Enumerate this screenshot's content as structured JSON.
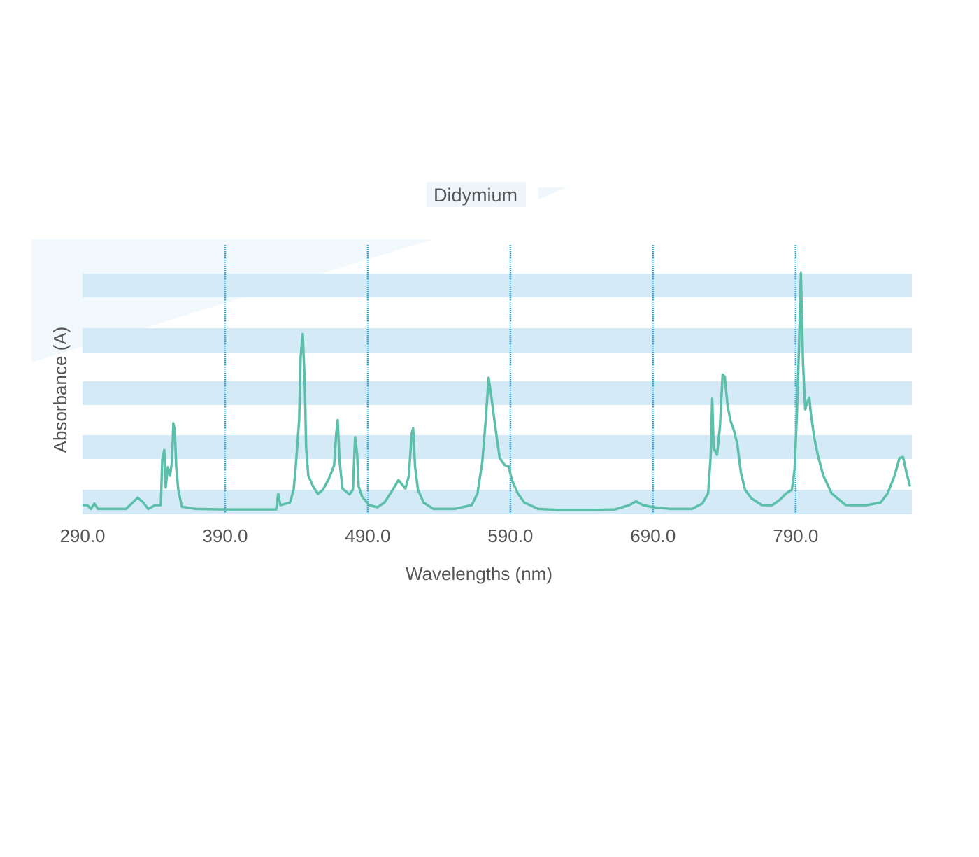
{
  "chart_data": {
    "type": "line",
    "title": "Didymium",
    "x_label": "Wavelengths (nm)",
    "y_label": "Absorbance (A)",
    "xlim": [
      290,
      871
    ],
    "ylim": [
      0,
      4.5
    ],
    "xticks": [
      {
        "value": 290,
        "label": "290.0"
      },
      {
        "value": 390,
        "label": "390.0"
      },
      {
        "value": 490,
        "label": "490.0"
      },
      {
        "value": 590,
        "label": "590.0"
      },
      {
        "value": 690,
        "label": "690.0"
      },
      {
        "value": 790,
        "label": "790.0"
      }
    ],
    "grid": true,
    "series": [
      {
        "color": "#5bbfaa",
        "x": [
          290.0,
          293.4,
          295.9,
          298.3,
          300.8,
          320.4,
          325.3,
          328.7,
          332.6,
          336.1,
          341.0,
          344.9,
          345.9,
          347.3,
          348.3,
          349.8,
          351.3,
          352.7,
          353.7,
          354.7,
          355.7,
          357.1,
          359.6,
          369.4,
          389.0,
          425.7,
          427.2,
          428.7,
          435.5,
          438.0,
          439.4,
          441.9,
          442.9,
          444.4,
          445.8,
          446.8,
          448.3,
          451.7,
          455.1,
          458.6,
          462.5,
          466.4,
          467.9,
          468.9,
          470.3,
          472.3,
          477.2,
          479.6,
          481.1,
          482.6,
          483.6,
          486.0,
          490.9,
          496.8,
          501.7,
          507.6,
          511.5,
          513.9,
          516.4,
          518.8,
          520.8,
          521.8,
          523.2,
          525.2,
          529.1,
          536.0,
          550.7,
          562.9,
          566.9,
          570.3,
          572.7,
          574.7,
          576.2,
          578.1,
          580.1,
          582.5,
          586.0,
          588.9,
          590.9,
          594.8,
          599.7,
          609.5,
          624.2,
          648.7,
          663.4,
          673.2,
          678.1,
          683.0,
          690.3,
          702.6,
          717.3,
          724.6,
          728.6,
          730.5,
          731.5,
          732.5,
          734.9,
          736.9,
          738.8,
          740.3,
          742.3,
          744.2,
          746.7,
          749.1,
          751.6,
          754.5,
          758.9,
          766.3,
          773.6,
          778.5,
          783.4,
          787.4,
          789.3,
          790.8,
          792.3,
          793.7,
          795.2,
          796.7,
          798.1,
          799.6,
          800.6,
          803.0,
          805.5,
          809.4,
          815.3,
          825.1,
          839.8,
          849.6,
          854.5,
          859.4,
          862.8,
          865.3,
          867.7,
          870.2
        ],
        "values": [
          0.17,
          0.17,
          0.1,
          0.2,
          0.1,
          0.1,
          0.22,
          0.31,
          0.22,
          0.1,
          0.17,
          0.17,
          1.01,
          1.2,
          0.5,
          0.88,
          0.72,
          0.98,
          1.7,
          1.57,
          0.88,
          0.46,
          0.14,
          0.1,
          0.09,
          0.09,
          0.38,
          0.17,
          0.22,
          0.46,
          0.85,
          1.76,
          2.94,
          3.37,
          2.48,
          1.24,
          0.72,
          0.52,
          0.38,
          0.46,
          0.65,
          0.91,
          1.5,
          1.76,
          0.98,
          0.48,
          0.37,
          0.46,
          1.44,
          1.11,
          0.52,
          0.33,
          0.17,
          0.13,
          0.22,
          0.46,
          0.64,
          0.56,
          0.48,
          0.72,
          1.5,
          1.61,
          0.88,
          0.46,
          0.22,
          0.1,
          0.1,
          0.17,
          0.39,
          0.98,
          1.76,
          2.55,
          2.29,
          1.9,
          1.5,
          1.05,
          0.92,
          0.89,
          0.65,
          0.41,
          0.22,
          0.1,
          0.08,
          0.08,
          0.09,
          0.17,
          0.24,
          0.17,
          0.13,
          0.1,
          0.1,
          0.2,
          0.39,
          1.11,
          2.16,
          1.24,
          1.11,
          1.63,
          2.61,
          2.57,
          2.03,
          1.76,
          1.57,
          1.31,
          0.78,
          0.46,
          0.3,
          0.17,
          0.17,
          0.26,
          0.39,
          0.46,
          0.85,
          1.83,
          3.07,
          4.51,
          2.81,
          1.96,
          2.09,
          2.18,
          1.9,
          1.44,
          1.11,
          0.72,
          0.39,
          0.17,
          0.17,
          0.22,
          0.39,
          0.72,
          1.05,
          1.07,
          0.78,
          0.52
        ]
      }
    ]
  }
}
